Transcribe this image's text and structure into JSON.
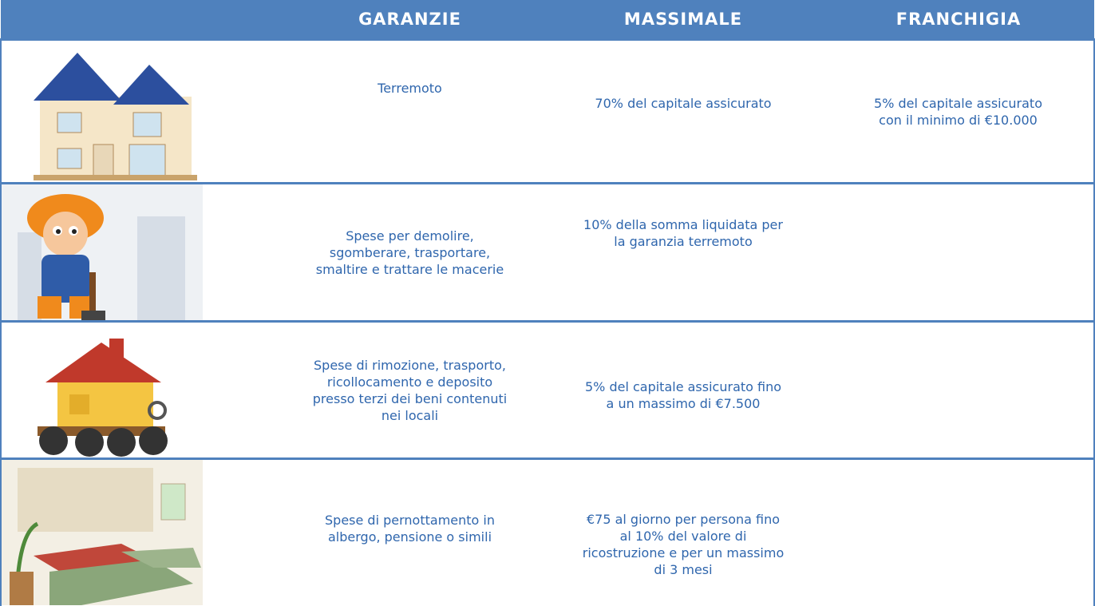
{
  "header": {
    "columns": [
      "GARANZIE",
      "MASSIMALE",
      "FRANCHIGIA"
    ]
  },
  "rows": [
    {
      "garanzia": "Terremoto",
      "massimale": "70% del capitale assicurato",
      "franchigia": "5% del capitale assicurato con il minimo di €10.000"
    },
    {
      "garanzia": "Spese per demolire, sgomberare, trasportare, smaltire e trattare le macerie",
      "massimale": "10% della somma liquidata per la garanzia terremoto"
    },
    {
      "garanzia": "Spese di rimozione, trasporto, ricollocamento e deposito presso terzi dei beni contenuti nei locali",
      "massimale": "5% del capitale assicurato fino a un massimo di €7.500"
    },
    {
      "garanzia": "Spese di pernottamento in albergo, pensione o simili",
      "massimale": "€75 al giorno per persona fino al 10% del valore di ricostruzione e per un massimo di 3 mesi"
    }
  ]
}
